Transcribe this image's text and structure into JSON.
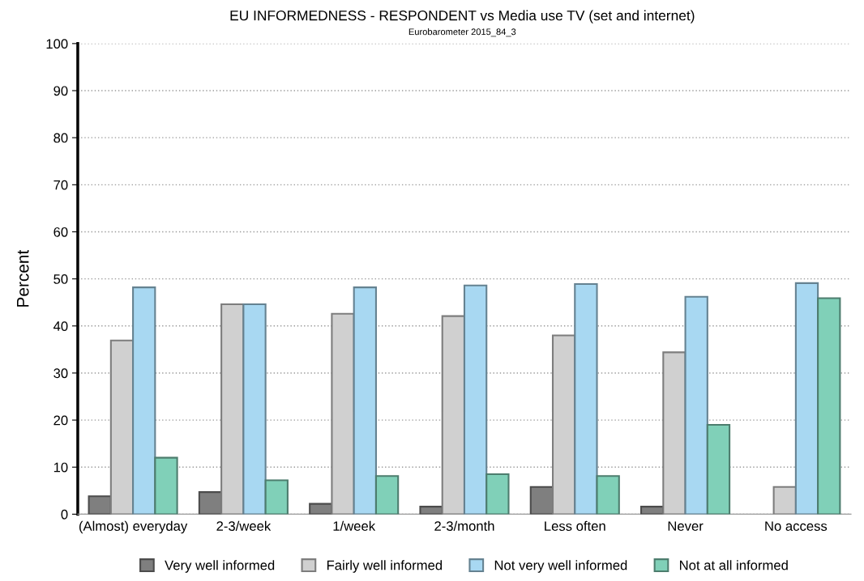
{
  "chart_data": {
    "type": "bar",
    "title": "EU INFORMEDNESS - RESPONDENT vs Media use TV (set and internet)",
    "subtitle": "Eurobarometer 2015_84_3",
    "ylabel": "Percent",
    "categories": [
      "(Almost) everyday",
      "2-3/week",
      "1/week",
      "2-3/month",
      "Less often",
      "Never",
      "No access"
    ],
    "series": [
      {
        "name": "Very well informed",
        "color": "#7f7f7f",
        "values": [
          3.8,
          4.7,
          2.2,
          1.6,
          5.8,
          1.6,
          null
        ]
      },
      {
        "name": "Fairly well informed",
        "color": "#d0d0d0",
        "values": [
          36.9,
          44.6,
          42.6,
          42.1,
          38.0,
          34.4,
          5.8
        ]
      },
      {
        "name": "Not very well informed",
        "color": "#a8d8f2",
        "values": [
          48.2,
          44.6,
          48.2,
          48.6,
          48.9,
          46.2,
          49.1
        ]
      },
      {
        "name": "Not at all informed",
        "color": "#80d0b8",
        "values": [
          12.0,
          7.2,
          8.1,
          8.5,
          8.1,
          19.0,
          45.9
        ]
      }
    ],
    "ylim": [
      0,
      100
    ],
    "yticks": [
      0,
      10,
      20,
      30,
      40,
      50,
      60,
      70,
      80,
      90,
      100
    ],
    "grid": "y",
    "legend": "bottom"
  }
}
